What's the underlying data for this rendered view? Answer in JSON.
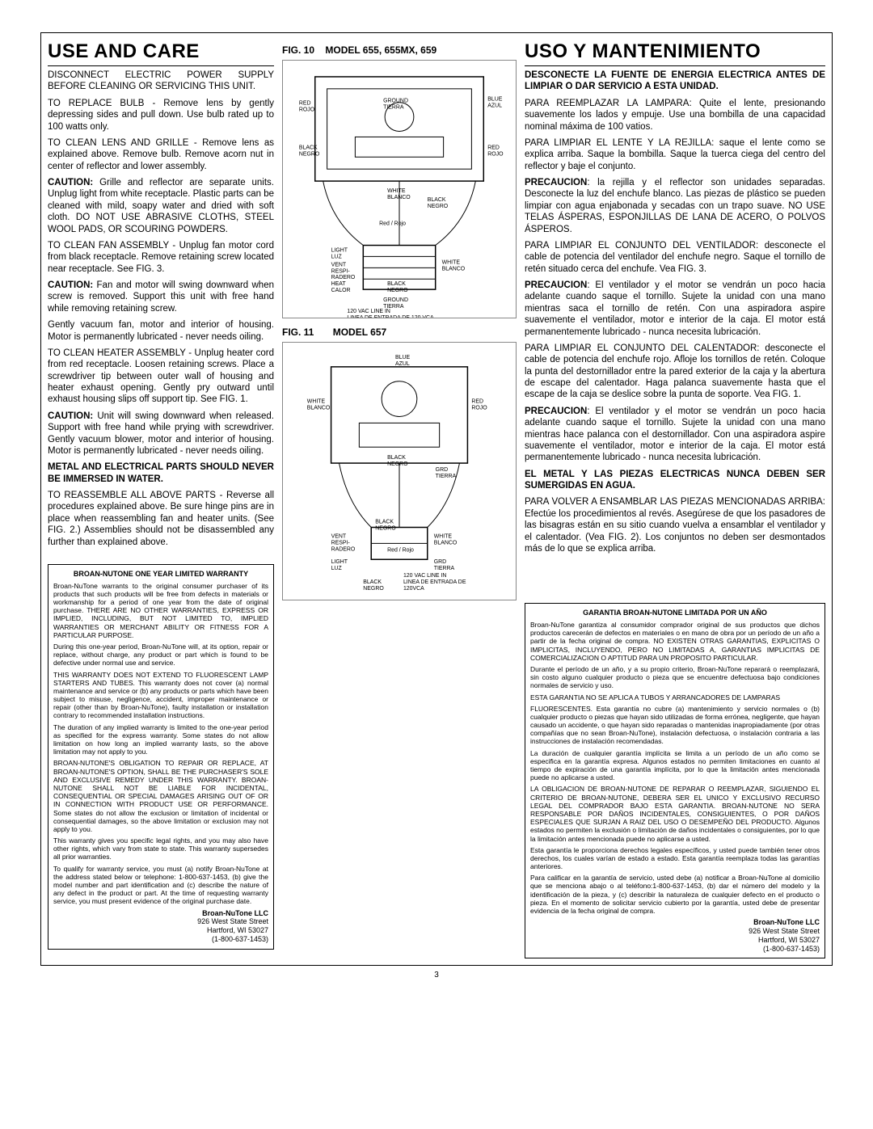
{
  "page_number": "3",
  "left": {
    "title": "USE AND CARE",
    "p1": "DISCONNECT ELECTRIC POWER SUPPLY BEFORE CLEANING OR SERVICING THIS UNIT.",
    "p2": "TO REPLACE BULB - Remove lens by gently depressing sides and pull down. Use bulb rated up to 100 watts only.",
    "p3": "TO CLEAN LENS AND GRILLE - Remove lens as explained above. Remove bulb. Remove acorn nut in center of reflector and lower assembly.",
    "p4_b": "CAUTION:",
    "p4": " Grille and reflector are separate units. Unplug light from white receptacle. Plastic parts can be cleaned with mild, soapy water and dried with soft cloth. DO NOT USE ABRASIVE CLOTHS, STEEL WOOL PADS, OR SCOURING POWDERS.",
    "p5": "TO CLEAN FAN ASSEMBLY - Unplug fan motor cord from black receptacle. Remove retaining screw located near receptacle. See FIG. 3.",
    "p6_b": "CAUTION:",
    "p6": " Fan and motor will swing downward when screw is removed. Support this unit with free hand while removing retaining screw.",
    "p7": "Gently vacuum fan, motor and interior of housing. Motor is permanently lubricated - never needs oiling.",
    "p8": "TO CLEAN HEATER ASSEMBLY - Unplug heater cord from red receptacle. Loosen retaining screws. Place a screwdriver tip between outer wall of housing and heater exhaust opening. Gently pry outward until exhaust housing slips off support tip. See FIG. 1.",
    "p9_b": "CAUTION:",
    "p9": " Unit will swing downward when released. Support with free hand while prying with screwdriver. Gently vacuum blower, motor and interior of housing. Motor is permanently lubricated - never needs oiling.",
    "p10": "METAL AND ELECTRICAL PARTS SHOULD NEVER BE IMMERSED IN WATER.",
    "p11": "TO REASSEMBLE ALL ABOVE PARTS - Reverse all procedures explained above. Be sure hinge pins are in place when reassembling fan and heater units. (See FIG. 2.) Assemblies should not be disassembled any further than explained above."
  },
  "mid": {
    "fig10": "FIG. 10",
    "fig10_model": "MODEL 655, 655MX, 659",
    "fig11": "FIG. 11",
    "fig11_model": "MODEL 657",
    "labels": {
      "red": "RED\nROJO",
      "black": "BLACK\nNEGRO",
      "blue": "BLUE\nAZUL",
      "ground": "GROUND\nTIERRA",
      "white": "WHITE\nBLANCO",
      "light": "LIGHT\nLUZ",
      "vent": "VENT\nRESPI-\nRADERO",
      "heat": "HEAT\nCALOR",
      "grd": "GRD\nTIERRA",
      "redrojo": "Red / Rojo",
      "vac": "120 VAC LINE IN\nLINEA DE ENTRADA DE 120 VCA",
      "vac2": "120 VAC LINE IN\nLINEA DE ENTRADA DE\n120VCA"
    }
  },
  "right": {
    "title": "USO Y MANTENIMIENTO",
    "p1": "DESCONECTE LA FUENTE DE ENERGIA ELECTRICA ANTES DE LIMPIAR O DAR SERVICIO A ESTA UNIDAD.",
    "p2": "PARA REEMPLAZAR LA LAMPARA: Quite el lente, presionando suavemente los lados y empuje. Use una bombilla de una capacidad nominal máxima de 100 vatios.",
    "p3": "PARA LIMPIAR EL LENTE Y LA REJILLA: saque el lente como se explica arriba. Saque la bombilla. Saque la tuerca ciega del centro del reflector y baje el conjunto.",
    "p4_b": "PRECAUCION",
    "p4": ": la rejilla y el reflector son unidades separadas. Desconecte la luz del enchufe blanco. Las piezas de plástico se pueden limpiar con agua enjabonada y secadas con un trapo suave. NO USE TELAS ÁSPERAS, ESPONJILLAS DE LANA DE ACERO, O POLVOS ÁSPEROS.",
    "p5": "PARA LIMPIAR EL CONJUNTO DEL VENTILADOR: desconecte el cable de potencia del ventilador del enchufe negro. Saque el tornillo de retén situado cerca del enchufe. Vea FIG. 3.",
    "p6_b": "PRECAUCION",
    "p6": ": El ventilador y el motor se vendrán un poco hacia adelante cuando saque el tornillo. Sujete la unidad con una mano mientras saca el tornillo de retén. Con una aspiradora aspire suavemente el ventilador, motor e interior de la caja. El motor está permanentemente lubricado - nunca necesita lubricación.",
    "p7": "PARA LIMPIAR EL CONJUNTO DEL CALENTADOR: desconecte el cable de potencia del enchufe rojo. Afloje los tornillos de retén. Coloque la punta del destornillador entre la pared exterior de la caja y la abertura de escape del calentador. Haga palanca suavemente hasta que el escape de la caja se deslice sobre la punta de soporte. Vea FIG. 1.",
    "p8_b": "PRECAUCION",
    "p8": ": El ventilador y el motor se vendrán un poco hacia adelante cuando saque el tornillo. Sujete la unidad con una mano mientras hace palanca con el destornillador. Con una aspiradora aspire suavemente el ventilador, motor e interior de la caja. El motor está permanentemente lubricado - nunca necesita lubricación.",
    "p9": "EL METAL Y LAS PIEZAS ELECTRICAS NUNCA DEBEN SER SUMERGIDAS EN AGUA.",
    "p10": "PARA VOLVER A ENSAMBLAR LAS PIEZAS MENCIONADAS ARRIBA: Efectúe los procedimientos al revés. Asegúrese de que los pasadores de las bisagras están en su sitio cuando vuelva a ensamblar el ventilador y el calentador. (Vea FIG. 2). Los conjuntos no deben ser desmontados más de lo que se explica arriba."
  },
  "warranty_en": {
    "title": "BROAN-NUTONE ONE YEAR LIMITED WARRANTY",
    "p1": "Broan-NuTone warrants to the original consumer purchaser of its products that such products will be free from defects in materials or workmanship for a period of one year from the date of original purchase. THERE ARE NO OTHER WARRANTIES, EXPRESS OR IMPLIED, INCLUDING, BUT NOT LIMITED TO, IMPLIED WARRANTIES OR MERCHANT ABILITY OR FITNESS FOR A PARTICULAR PURPOSE.",
    "p2": "During this one-year period, Broan-NuTone will, at its option, repair or replace, without charge, any product or part which is found to be defective under normal use and service.",
    "p3": "THIS WARRANTY DOES NOT EXTEND TO FLUORESCENT LAMP STARTERS AND TUBES. This warranty does not cover (a) normal maintenance and service or (b) any products or parts which have been subject to misuse, negligence, accident, improper maintenance or repair (other than by Broan-NuTone), faulty installation or installation contrary to recommended installation instructions.",
    "p4": "The duration of any implied warranty is limited to the one-year period as specified for the express warranty. Some states do not allow limitation on how long an implied warranty lasts, so the above limitation may not apply to you.",
    "p5": "BROAN-NUTONE'S OBLIGATION TO REPAIR OR REPLACE, AT BROAN-NUTONE'S OPTION, SHALL BE THE PURCHASER'S SOLE AND EXCLUSIVE REMEDY UNDER THIS WARRANTY. BROAN-NUTONE SHALL NOT BE LIABLE FOR INCIDENTAL, CONSEQUENTIAL OR SPECIAL DAMAGES ARISING OUT OF OR IN CONNECTION WITH PRODUCT USE OR PERFORMANCE. Some states do not allow the exclusion or limitation of incidental or consequential damages, so the above limitation or exclusion may not apply to you.",
    "p6": "This warranty gives you specific legal rights, and you may also have other rights, which vary from state to state. This warranty supersedes all prior warranties.",
    "p7": "To qualify for warranty service, you must (a) notify Broan-NuTone at the address stated below or telephone: 1-800-637-1453, (b) give the model number and part identification and (c) describe the nature of any defect in the product or part. At the time of requesting warranty service, you must present evidence of the original purchase date.",
    "company": "Broan-NuTone LLC",
    "addr1": "926 West State Street",
    "addr2": "Hartford, WI 53027",
    "phone": "(1-800-637-1453)"
  },
  "warranty_es": {
    "title": "GARANTIA BROAN-NUTONE LIMITADA POR UN AÑO",
    "p1": "Broan-NuTone garantiza al consumidor comprador original de sus productos que dichos productos carecerán de defectos en materiales o en mano de obra por un período de un año a partir de la fecha original de compra. NO EXISTEN OTRAS GARANTIAS, EXPLICITAS O IMPLICITAS, INCLUYENDO, PERO NO LIMITADAS A, GARANTIAS IMPLICITAS DE COMERCIALIZACION O APTITUD PARA UN PROPOSITO PARTICULAR.",
    "p2": "Durante el período de un año, y a su propio criterio, Broan-NuTone reparará o reemplazará, sin costo alguno cualquier producto o pieza que se encuentre defectuosa bajo condiciones normales de servicio y uso.",
    "p3": "ESTA GARANTIA NO SE APLICA A TUBOS Y ARRANCADORES DE LAMPARAS",
    "p4": "FLUORESCENTES. Esta garantía no cubre (a) mantenimiento y servicio normales o (b) cualquier producto o piezas que hayan sido utilizadas de forma errónea, negligente, que hayan causado un accidente, o que hayan sido reparadas o mantenidas inapropiadamente (por otras compañías que no sean Broan-NuTone), instalación defectuosa, o instalación contraria a las instrucciones de instalación recomendadas.",
    "p5": "La duración de cualquier garantía implícita se limita a un período de un año como se especifica en la garantía expresa. Algunos estados no permiten limitaciones en cuanto al tiempo de expiración de una garantía implícita, por lo que la limitación antes mencionada puede no aplicarse a usted.",
    "p6": "LA OBLIGACION DE BROAN-NUTONE DE REPARAR O REEMPLAZAR, SIGUIENDO EL CRITERIO DE BROAN-NUTONE, DEBERA SER EL UNICO Y EXCLUSIVO RECURSO LEGAL DEL COMPRADOR BAJO ESTA GARANTIA. BROAN-NUTONE NO SERA RESPONSABLE POR DAÑOS INCIDENTALES, CONSIGUIENTES, O POR DAÑOS ESPECIALES QUE SURJAN A RAIZ DEL USO O DESEMPEÑO DEL PRODUCTO. Algunos estados no permiten la exclusión o limitación de daños incidentales o consiguientes, por lo que la limitación antes mencionada puede no aplicarse a usted.",
    "p7": "Esta garantía le proporciona derechos legales específicos, y usted puede también tener otros derechos, los cuales varían de estado a estado. Esta garantía reemplaza todas las garantías anteriores.",
    "p8": "Para calificar en la garantía de servicio, usted debe (a) notificar a Broan-NuTone al domicilio que se menciona abajo o al teléfono:1-800-637-1453, (b) dar el número del modelo y la identificación de la pieza, y (c) describir la naturaleza de cualquier defecto en el producto o pieza. En el momento de solicitar servicio cubierto por la garantía, usted debe de presentar evidencia de la fecha original de compra.",
    "company": "Broan-NuTone LLC",
    "addr1": "926 West State Street",
    "addr2": "Hartford, WI 53027",
    "phone": "(1-800-637-1453)"
  }
}
